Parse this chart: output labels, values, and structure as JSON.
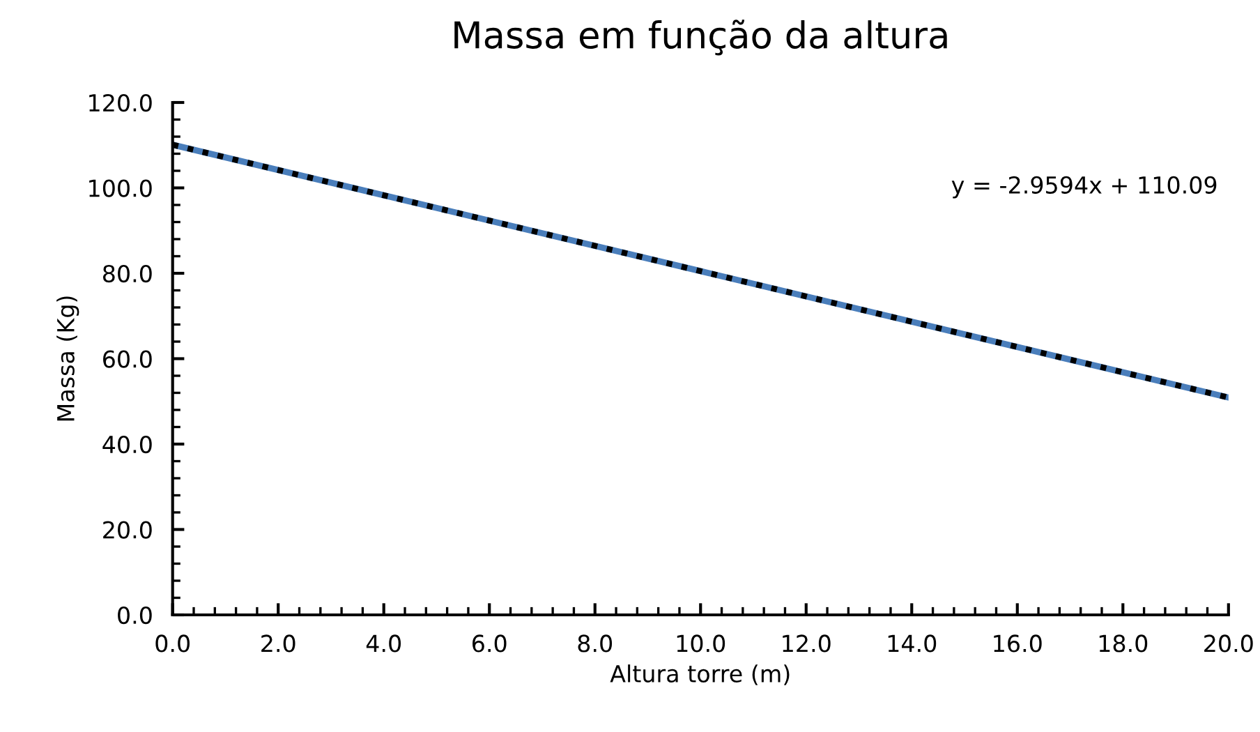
{
  "chart_data": {
    "type": "line",
    "title": "Massa em função da altura",
    "xlabel": "Altura torre (m)",
    "ylabel": "Massa (Kg)",
    "annotations": [
      "y = -2.9594x + 110.09"
    ],
    "series": [
      {
        "color": "#4a7ebb",
        "x": [
          0,
          5,
          10,
          15,
          20
        ],
        "values": [
          110.1,
          95.3,
          80.5,
          65.7,
          50.9
        ],
        "line_style": "solid"
      },
      {
        "type": "line",
        "color": "#000000",
        "x": [
          0,
          20
        ],
        "values": [
          110.1,
          50.9
        ],
        "line_style": "dotted"
      }
    ],
    "xlim": [
      0,
      20
    ],
    "ylim": [
      0,
      120
    ],
    "xticks": [
      {
        "value": 0,
        "label": "0.0"
      },
      {
        "value": 2,
        "label": "2.0"
      },
      {
        "value": 4,
        "label": "4.0"
      },
      {
        "value": 6,
        "label": "6.0"
      },
      {
        "value": 8,
        "label": "8.0"
      },
      {
        "value": 10,
        "label": "10.0"
      },
      {
        "value": 12,
        "label": "12.0"
      },
      {
        "value": 14,
        "label": "14.0"
      },
      {
        "value": 16,
        "label": "16.0"
      },
      {
        "value": 18,
        "label": "18.0"
      },
      {
        "value": 20,
        "label": "20.0"
      }
    ],
    "yticks": [
      {
        "value": 0,
        "label": "0.0"
      },
      {
        "value": 20,
        "label": "20.0"
      },
      {
        "value": 40,
        "label": "40.0"
      },
      {
        "value": 60,
        "label": "60.0"
      },
      {
        "value": 80,
        "label": "80.0"
      },
      {
        "value": 100,
        "label": "100.0"
      },
      {
        "value": 120,
        "label": "120.0"
      }
    ],
    "grid": false,
    "legend": false,
    "marker": "none"
  }
}
